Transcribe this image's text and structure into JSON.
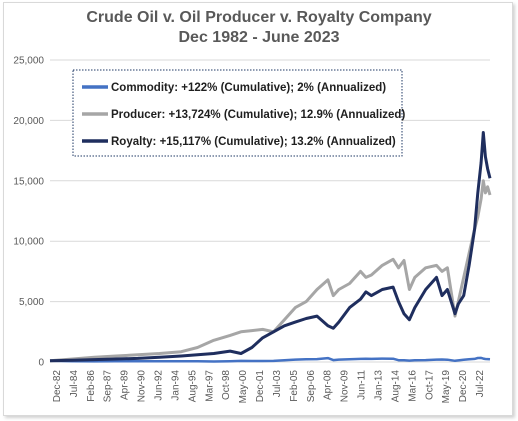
{
  "chart_data": {
    "type": "line",
    "title_lines": [
      "Crude Oil v. Oil Producer v. Royalty Company",
      "Dec 1982 - June 2023"
    ],
    "xlabel": "",
    "ylabel": "",
    "ylim": [
      0,
      25000
    ],
    "y_ticks": [
      "0",
      "5,000",
      "10,000",
      "15,000",
      "20,000",
      "25,000"
    ],
    "x_ticks": [
      "Dec-82",
      "Jul-84",
      "Feb-86",
      "Sep-87",
      "Apr-89",
      "Nov-90",
      "Jun-92",
      "Jan-94",
      "Aug-95",
      "Mar-97",
      "Oct-98",
      "May-00",
      "Dec-01",
      "Jul-03",
      "Feb-05",
      "Sep-06",
      "Apr-08",
      "Nov-09",
      "Jun-11",
      "Jan-13",
      "Aug-14",
      "Mar-16",
      "Oct-17",
      "May-19",
      "Dec-20",
      "Jul-22"
    ],
    "grid": true,
    "legend_position": "top-left",
    "x": [
      1982.92,
      1985,
      1987,
      1989,
      1991,
      1993,
      1995,
      1996.5,
      1998,
      1999.5,
      2000.5,
      2001.5,
      2002.5,
      2003.5,
      2004.5,
      2005.5,
      2006.5,
      2007.5,
      2008.5,
      2009,
      2009.5,
      2010.5,
      2011.5,
      2012,
      2012.5,
      2013.5,
      2014.5,
      2015,
      2015.5,
      2016,
      2016.5,
      2017.5,
      2018.5,
      2019,
      2019.5,
      2020.2,
      2020.5,
      2021,
      2021.5,
      2022,
      2022.3,
      2022.6,
      2022.8,
      2023,
      2023.2,
      2023.42
    ],
    "series": [
      {
        "name": "Commodity: +122% (Cumulative); 2% (Annualized)",
        "color": "#4472c4",
        "values": [
          100,
          65,
          50,
          60,
          60,
          55,
          55,
          65,
          45,
          70,
          95,
          80,
          85,
          95,
          150,
          200,
          220,
          240,
          320,
          160,
          200,
          230,
          260,
          270,
          260,
          280,
          270,
          150,
          150,
          120,
          150,
          160,
          200,
          210,
          190,
          100,
          130,
          180,
          220,
          260,
          330,
          340,
          280,
          250,
          240,
          222
        ]
      },
      {
        "name": "Producer: +13,724% (Cumulative); 12.9% (Annualized)",
        "color": "#a6a6a6",
        "values": [
          100,
          250,
          400,
          500,
          600,
          700,
          850,
          1200,
          1800,
          2200,
          2500,
          2600,
          2700,
          2500,
          3500,
          4500,
          5000,
          6000,
          6800,
          5500,
          6000,
          6500,
          7500,
          7000,
          7200,
          8000,
          8500,
          7800,
          8400,
          6000,
          7000,
          7800,
          8000,
          7500,
          7800,
          3800,
          5000,
          7000,
          9000,
          11000,
          12000,
          13500,
          15000,
          14000,
          14500,
          13824
        ]
      },
      {
        "name": "Royalty: +15,117% (Cumulative); 13.2% (Annualized)",
        "color": "#1f2e5e",
        "values": [
          100,
          150,
          200,
          250,
          300,
          400,
          500,
          600,
          700,
          900,
          700,
          1200,
          2000,
          2500,
          3000,
          3300,
          3600,
          3800,
          3000,
          2800,
          3300,
          4500,
          5200,
          5800,
          5500,
          6000,
          6200,
          5000,
          4000,
          3500,
          4500,
          6000,
          7000,
          5500,
          6000,
          4000,
          4800,
          5500,
          8000,
          11000,
          14000,
          16500,
          19000,
          17000,
          16000,
          15217
        ]
      }
    ]
  }
}
